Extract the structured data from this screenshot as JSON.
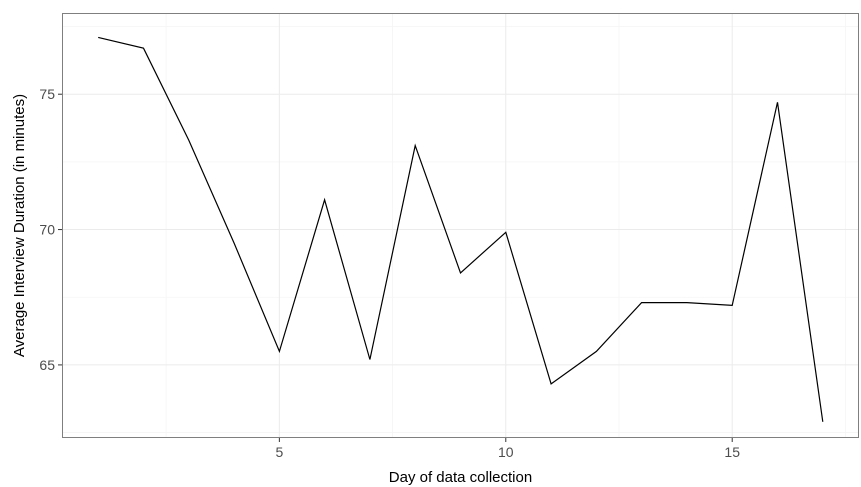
{
  "chart_data": {
    "type": "line",
    "title": "",
    "xlabel": "Day of data collection",
    "ylabel": "Average Interview Duration (in minutes)",
    "xlim": [
      0.2,
      17.8
    ],
    "ylim": [
      62.3,
      78.0
    ],
    "x_major_ticks": [
      5,
      10,
      15
    ],
    "x_minor_ticks": [
      2.5,
      7.5,
      12.5,
      17.5
    ],
    "y_major_ticks": [
      65,
      70,
      75
    ],
    "y_minor_ticks": [
      62.5,
      67.5,
      72.5,
      77.5
    ],
    "x_tick_labels": [
      "5",
      "10",
      "15"
    ],
    "y_tick_labels": [
      "65",
      "70",
      "75"
    ],
    "grid": true,
    "legend": "none",
    "line_color": "#000000",
    "grid_major_color": "#ebebeb",
    "grid_minor_color": "#f5f5f5",
    "panel_border_color": "#7f7f7f",
    "series": [
      {
        "x": [
          1,
          2,
          3,
          4,
          5,
          6,
          7,
          8,
          9,
          10,
          11,
          12,
          13,
          14,
          15,
          16,
          17
        ],
        "y": [
          77.1,
          76.7,
          73.3,
          69.5,
          65.5,
          71.1,
          65.2,
          73.1,
          68.4,
          69.9,
          64.3,
          65.5,
          67.3,
          67.3,
          67.2,
          74.7,
          62.9
        ]
      }
    ]
  }
}
